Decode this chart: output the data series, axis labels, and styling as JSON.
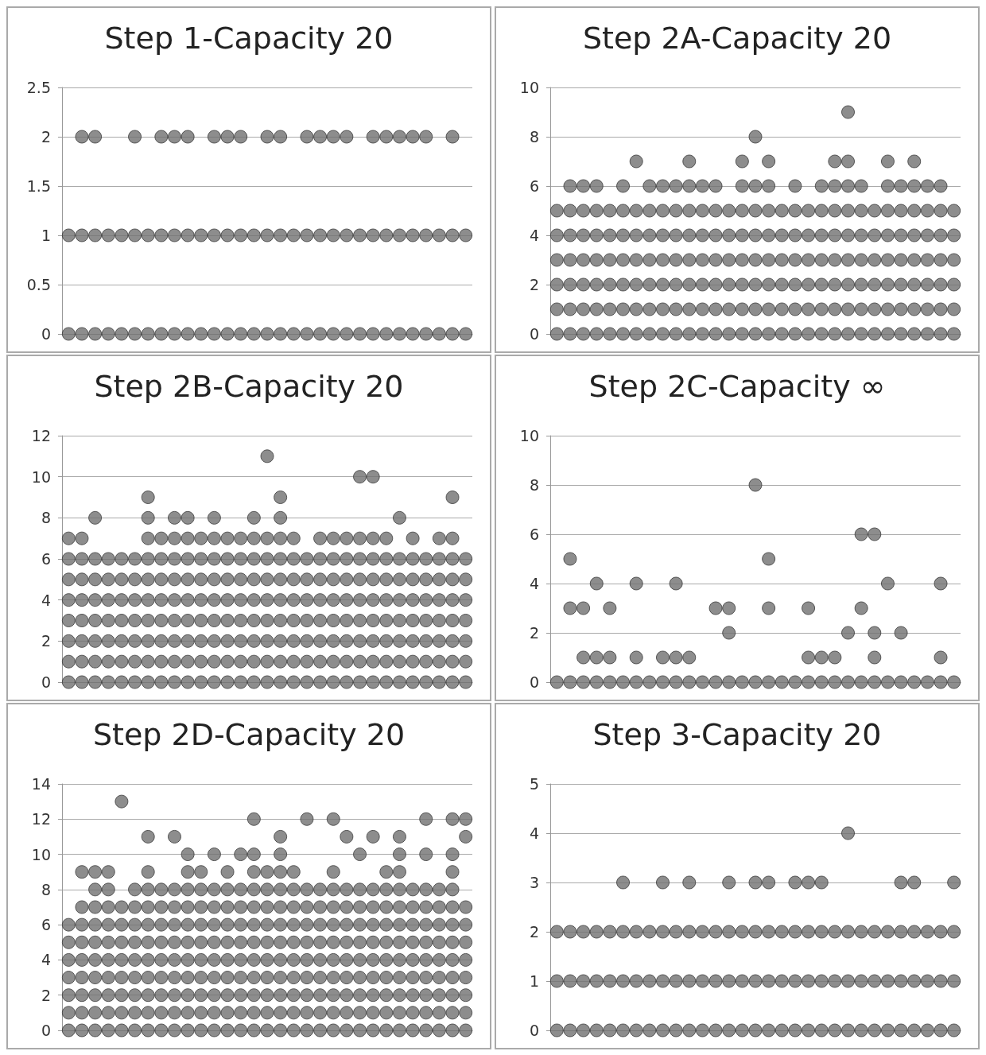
{
  "chart_data": [
    {
      "type": "scatter",
      "title": "Step 1-Capacity 20",
      "categories": [
        null,
        null,
        null,
        null,
        null,
        null,
        null,
        null,
        null,
        null,
        null,
        null,
        null,
        null,
        null,
        null,
        null,
        null,
        null,
        null,
        null,
        null,
        null,
        null,
        null,
        null,
        null,
        null,
        null,
        null,
        null
      ],
      "ylim": [
        0,
        2.5
      ],
      "yticks": [
        0,
        0.5,
        1,
        1.5,
        2,
        2.5
      ],
      "tick_labels": "y",
      "grid": "y",
      "marker": "circle",
      "series": [
        {
          "color": "#707070",
          "values": [
            0,
            0,
            0,
            0,
            0,
            0,
            0,
            0,
            0,
            0,
            0,
            0,
            0,
            0,
            0,
            0,
            0,
            0,
            0,
            0,
            0,
            0,
            0,
            0,
            0,
            0,
            0,
            0,
            0,
            0,
            0
          ]
        },
        {
          "color": "#707070",
          "values": [
            1,
            1,
            1,
            1,
            1,
            1,
            1,
            1,
            1,
            1,
            1,
            1,
            1,
            1,
            1,
            1,
            1,
            1,
            1,
            1,
            1,
            1,
            1,
            1,
            1,
            1,
            1,
            1,
            1,
            1,
            1
          ]
        },
        {
          "color": "#707070",
          "values": [
            null,
            2,
            2,
            null,
            null,
            2,
            null,
            2,
            2,
            2,
            null,
            2,
            2,
            2,
            null,
            2,
            2,
            null,
            2,
            2,
            2,
            2,
            null,
            2,
            2,
            2,
            2,
            2,
            null,
            2,
            null
          ]
        }
      ]
    },
    {
      "type": "scatter",
      "title": "Step 2A-Capacity 20",
      "categories": [
        null,
        null,
        null,
        null,
        null,
        null,
        null,
        null,
        null,
        null,
        null,
        null,
        null,
        null,
        null,
        null,
        null,
        null,
        null,
        null,
        null,
        null,
        null,
        null,
        null,
        null,
        null,
        null,
        null,
        null,
        null
      ],
      "ylim": [
        0,
        10
      ],
      "yticks": [
        0,
        2,
        4,
        6,
        8,
        10
      ],
      "tick_labels": "y",
      "grid": "y",
      "marker": "circle",
      "series": [
        {
          "color": "#707070",
          "values": [
            0,
            0,
            0,
            0,
            0,
            0,
            0,
            0,
            0,
            0,
            0,
            0,
            0,
            0,
            0,
            0,
            0,
            0,
            0,
            0,
            0,
            0,
            0,
            0,
            0,
            0,
            0,
            0,
            0,
            0,
            0
          ]
        },
        {
          "color": "#707070",
          "values": [
            1,
            1,
            1,
            1,
            1,
            1,
            1,
            1,
            1,
            1,
            1,
            1,
            1,
            1,
            1,
            1,
            1,
            1,
            1,
            1,
            1,
            1,
            1,
            1,
            1,
            1,
            1,
            1,
            1,
            1,
            1
          ]
        },
        {
          "color": "#707070",
          "values": [
            2,
            2,
            2,
            2,
            2,
            2,
            2,
            2,
            2,
            2,
            2,
            2,
            2,
            2,
            2,
            2,
            2,
            2,
            2,
            2,
            2,
            2,
            2,
            2,
            2,
            2,
            2,
            2,
            2,
            2,
            2
          ]
        },
        {
          "color": "#707070",
          "values": [
            3,
            3,
            3,
            3,
            3,
            3,
            3,
            3,
            3,
            3,
            3,
            3,
            3,
            3,
            3,
            3,
            3,
            3,
            3,
            3,
            3,
            3,
            3,
            3,
            3,
            3,
            3,
            3,
            3,
            3,
            3
          ]
        },
        {
          "color": "#707070",
          "values": [
            4,
            4,
            4,
            4,
            4,
            4,
            4,
            4,
            4,
            4,
            4,
            4,
            4,
            4,
            4,
            4,
            4,
            4,
            4,
            4,
            4,
            4,
            4,
            4,
            4,
            4,
            4,
            4,
            4,
            4,
            4
          ]
        },
        {
          "color": "#707070",
          "values": [
            5,
            5,
            5,
            5,
            5,
            5,
            5,
            5,
            5,
            5,
            5,
            5,
            5,
            5,
            5,
            5,
            5,
            5,
            5,
            5,
            5,
            5,
            5,
            5,
            5,
            5,
            5,
            5,
            5,
            5,
            5
          ]
        },
        {
          "color": "#707070",
          "values": [
            null,
            6,
            6,
            6,
            null,
            6,
            null,
            6,
            6,
            6,
            6,
            6,
            6,
            null,
            6,
            6,
            6,
            null,
            6,
            null,
            6,
            6,
            6,
            6,
            null,
            6,
            6,
            6,
            6,
            6,
            null
          ]
        },
        {
          "color": "#707070",
          "values": [
            null,
            null,
            null,
            null,
            null,
            null,
            7,
            null,
            null,
            null,
            7,
            null,
            null,
            null,
            7,
            null,
            7,
            null,
            null,
            null,
            null,
            7,
            7,
            null,
            null,
            7,
            null,
            7,
            null,
            null,
            null
          ]
        },
        {
          "color": "#707070",
          "values": [
            null,
            null,
            null,
            null,
            null,
            null,
            null,
            null,
            null,
            null,
            null,
            null,
            null,
            null,
            null,
            8,
            null,
            null,
            null,
            null,
            null,
            null,
            null,
            null,
            null,
            null,
            null,
            null,
            null,
            null,
            null
          ]
        },
        {
          "color": "#707070",
          "values": [
            null,
            null,
            null,
            null,
            null,
            null,
            null,
            null,
            null,
            null,
            null,
            null,
            null,
            null,
            null,
            null,
            null,
            null,
            null,
            null,
            null,
            null,
            9,
            null,
            null,
            null,
            null,
            null,
            null,
            null,
            null
          ]
        }
      ]
    },
    {
      "type": "scatter",
      "title": "Step 2B-Capacity 20",
      "categories": [
        null,
        null,
        null,
        null,
        null,
        null,
        null,
        null,
        null,
        null,
        null,
        null,
        null,
        null,
        null,
        null,
        null,
        null,
        null,
        null,
        null,
        null,
        null,
        null,
        null,
        null,
        null,
        null,
        null,
        null,
        null
      ],
      "ylim": [
        0,
        12
      ],
      "yticks": [
        0,
        2,
        4,
        6,
        8,
        10,
        12
      ],
      "tick_labels": "y",
      "grid": "y",
      "marker": "circle",
      "series": [
        {
          "color": "#707070",
          "values": [
            0,
            0,
            0,
            0,
            0,
            0,
            0,
            0,
            0,
            0,
            0,
            0,
            0,
            0,
            0,
            0,
            0,
            0,
            0,
            0,
            0,
            0,
            0,
            0,
            0,
            0,
            0,
            0,
            0,
            0,
            0
          ]
        },
        {
          "color": "#707070",
          "values": [
            1,
            1,
            1,
            1,
            1,
            1,
            1,
            1,
            1,
            1,
            1,
            1,
            1,
            1,
            1,
            1,
            1,
            1,
            1,
            1,
            1,
            1,
            1,
            1,
            1,
            1,
            1,
            1,
            1,
            1,
            1
          ]
        },
        {
          "color": "#707070",
          "values": [
            2,
            2,
            2,
            2,
            2,
            2,
            2,
            2,
            2,
            2,
            2,
            2,
            2,
            2,
            2,
            2,
            2,
            2,
            2,
            2,
            2,
            2,
            2,
            2,
            2,
            2,
            2,
            2,
            2,
            2,
            2
          ]
        },
        {
          "color": "#707070",
          "values": [
            3,
            3,
            3,
            3,
            3,
            3,
            3,
            3,
            3,
            3,
            3,
            3,
            3,
            3,
            3,
            3,
            3,
            3,
            3,
            3,
            3,
            3,
            3,
            3,
            3,
            3,
            3,
            3,
            3,
            3,
            3
          ]
        },
        {
          "color": "#707070",
          "values": [
            4,
            4,
            4,
            4,
            4,
            4,
            4,
            4,
            4,
            4,
            4,
            4,
            4,
            4,
            4,
            4,
            4,
            4,
            4,
            4,
            4,
            4,
            4,
            4,
            4,
            4,
            4,
            4,
            4,
            4,
            4
          ]
        },
        {
          "color": "#707070",
          "values": [
            5,
            5,
            5,
            5,
            5,
            5,
            5,
            5,
            5,
            5,
            5,
            5,
            5,
            5,
            5,
            5,
            5,
            5,
            5,
            5,
            5,
            5,
            5,
            5,
            5,
            5,
            5,
            5,
            5,
            5,
            5
          ]
        },
        {
          "color": "#707070",
          "values": [
            6,
            6,
            6,
            6,
            6,
            6,
            6,
            6,
            6,
            6,
            6,
            6,
            6,
            6,
            6,
            6,
            6,
            6,
            6,
            6,
            6,
            6,
            6,
            6,
            6,
            6,
            6,
            6,
            6,
            6,
            6
          ]
        },
        {
          "color": "#707070",
          "values": [
            7,
            7,
            null,
            null,
            null,
            null,
            7,
            7,
            7,
            7,
            7,
            7,
            7,
            7,
            7,
            7,
            7,
            7,
            null,
            7,
            7,
            7,
            7,
            7,
            7,
            null,
            7,
            null,
            7,
            7,
            null
          ]
        },
        {
          "color": "#707070",
          "values": [
            null,
            null,
            8,
            null,
            null,
            null,
            8,
            null,
            8,
            8,
            null,
            8,
            null,
            null,
            8,
            null,
            8,
            null,
            null,
            null,
            null,
            null,
            null,
            null,
            null,
            8,
            null,
            null,
            null,
            null,
            null
          ]
        },
        {
          "color": "#707070",
          "values": [
            null,
            null,
            null,
            null,
            null,
            null,
            9,
            null,
            null,
            null,
            null,
            null,
            null,
            null,
            null,
            null,
            9,
            null,
            null,
            null,
            null,
            null,
            null,
            null,
            null,
            null,
            null,
            null,
            null,
            9,
            null
          ]
        },
        {
          "color": "#707070",
          "values": [
            null,
            null,
            null,
            null,
            null,
            null,
            null,
            null,
            null,
            null,
            null,
            null,
            null,
            null,
            null,
            null,
            null,
            null,
            null,
            null,
            null,
            null,
            10,
            10,
            null,
            null,
            null,
            null,
            null,
            null,
            null
          ]
        },
        {
          "color": "#707070",
          "values": [
            null,
            null,
            null,
            null,
            null,
            null,
            null,
            null,
            null,
            null,
            null,
            null,
            null,
            null,
            null,
            11,
            null,
            null,
            null,
            null,
            null,
            null,
            null,
            null,
            null,
            null,
            null,
            null,
            null,
            null,
            null
          ]
        }
      ]
    },
    {
      "type": "scatter",
      "title": "Step 2C-Capacity ∞",
      "categories": [
        null,
        null,
        null,
        null,
        null,
        null,
        null,
        null,
        null,
        null,
        null,
        null,
        null,
        null,
        null,
        null,
        null,
        null,
        null,
        null,
        null,
        null,
        null,
        null,
        null,
        null,
        null,
        null,
        null,
        null,
        null
      ],
      "ylim": [
        0,
        10
      ],
      "yticks": [
        0,
        2,
        4,
        6,
        8,
        10
      ],
      "tick_labels": "y",
      "grid": "y",
      "marker": "circle",
      "series": [
        {
          "color": "#707070",
          "values": [
            0,
            0,
            0,
            0,
            0,
            0,
            0,
            0,
            0,
            0,
            0,
            0,
            0,
            0,
            0,
            0,
            0,
            0,
            0,
            0,
            0,
            0,
            0,
            0,
            0,
            0,
            0,
            0,
            0,
            0,
            0
          ]
        },
        {
          "color": "#707070",
          "values": [
            null,
            null,
            1,
            1,
            1,
            null,
            1,
            null,
            1,
            1,
            1,
            null,
            null,
            null,
            null,
            null,
            null,
            null,
            null,
            1,
            1,
            1,
            null,
            null,
            1,
            null,
            null,
            null,
            null,
            1,
            null
          ]
        },
        {
          "color": "#707070",
          "values": [
            null,
            null,
            null,
            null,
            null,
            null,
            null,
            null,
            null,
            null,
            null,
            null,
            null,
            2,
            null,
            null,
            null,
            null,
            null,
            null,
            null,
            null,
            2,
            null,
            2,
            null,
            2,
            null,
            null,
            null,
            null
          ]
        },
        {
          "color": "#707070",
          "values": [
            null,
            3,
            3,
            null,
            3,
            null,
            null,
            null,
            null,
            null,
            null,
            null,
            3,
            3,
            null,
            null,
            3,
            null,
            null,
            3,
            null,
            null,
            null,
            3,
            null,
            null,
            null,
            null,
            null,
            null,
            null
          ]
        },
        {
          "color": "#707070",
          "values": [
            null,
            null,
            null,
            4,
            null,
            null,
            4,
            null,
            null,
            4,
            null,
            null,
            null,
            null,
            null,
            null,
            null,
            null,
            null,
            null,
            null,
            null,
            null,
            null,
            null,
            4,
            null,
            null,
            null,
            4,
            null
          ]
        },
        {
          "color": "#707070",
          "values": [
            null,
            5,
            null,
            null,
            null,
            null,
            null,
            null,
            null,
            null,
            null,
            null,
            null,
            null,
            null,
            null,
            5,
            null,
            null,
            null,
            null,
            null,
            null,
            null,
            null,
            null,
            null,
            null,
            null,
            null,
            null
          ]
        },
        {
          "color": "#707070",
          "values": [
            null,
            null,
            null,
            null,
            null,
            null,
            null,
            null,
            null,
            null,
            null,
            null,
            null,
            null,
            null,
            null,
            null,
            null,
            null,
            null,
            null,
            null,
            null,
            6,
            6,
            null,
            null,
            null,
            null,
            null,
            null
          ]
        },
        {
          "color": "#707070",
          "values": [
            null,
            null,
            null,
            null,
            null,
            null,
            null,
            null,
            null,
            null,
            null,
            null,
            null,
            null,
            null,
            8,
            null,
            null,
            null,
            null,
            null,
            null,
            null,
            null,
            null,
            null,
            null,
            null,
            null,
            null,
            null
          ]
        }
      ]
    },
    {
      "type": "scatter",
      "title": "Step 2D-Capacity 20",
      "categories": [
        null,
        null,
        null,
        null,
        null,
        null,
        null,
        null,
        null,
        null,
        null,
        null,
        null,
        null,
        null,
        null,
        null,
        null,
        null,
        null,
        null,
        null,
        null,
        null,
        null,
        null,
        null,
        null,
        null,
        null,
        null
      ],
      "ylim": [
        0,
        14
      ],
      "yticks": [
        0,
        2,
        4,
        6,
        8,
        10,
        12,
        14
      ],
      "tick_labels": "y",
      "grid": "y",
      "marker": "circle",
      "series": [
        {
          "color": "#707070",
          "values": [
            0,
            0,
            0,
            0,
            0,
            0,
            0,
            0,
            0,
            0,
            0,
            0,
            0,
            0,
            0,
            0,
            0,
            0,
            0,
            0,
            0,
            0,
            0,
            0,
            0,
            0,
            0,
            0,
            0,
            0,
            0
          ]
        },
        {
          "color": "#707070",
          "values": [
            1,
            1,
            1,
            1,
            1,
            1,
            1,
            1,
            1,
            1,
            1,
            1,
            1,
            1,
            1,
            1,
            1,
            1,
            1,
            1,
            1,
            1,
            1,
            1,
            1,
            1,
            1,
            1,
            1,
            1,
            1
          ]
        },
        {
          "color": "#707070",
          "values": [
            2,
            2,
            2,
            2,
            2,
            2,
            2,
            2,
            2,
            2,
            2,
            2,
            2,
            2,
            2,
            2,
            2,
            2,
            2,
            2,
            2,
            2,
            2,
            2,
            2,
            2,
            2,
            2,
            2,
            2,
            2
          ]
        },
        {
          "color": "#707070",
          "values": [
            3,
            3,
            3,
            3,
            3,
            3,
            3,
            3,
            3,
            3,
            3,
            3,
            3,
            3,
            3,
            3,
            3,
            3,
            3,
            3,
            3,
            3,
            3,
            3,
            3,
            3,
            3,
            3,
            3,
            3,
            3
          ]
        },
        {
          "color": "#707070",
          "values": [
            4,
            4,
            4,
            4,
            4,
            4,
            4,
            4,
            4,
            4,
            4,
            4,
            4,
            4,
            4,
            4,
            4,
            4,
            4,
            4,
            4,
            4,
            4,
            4,
            4,
            4,
            4,
            4,
            4,
            4,
            4
          ]
        },
        {
          "color": "#707070",
          "values": [
            5,
            5,
            5,
            5,
            5,
            5,
            5,
            5,
            5,
            5,
            5,
            5,
            5,
            5,
            5,
            5,
            5,
            5,
            5,
            5,
            5,
            5,
            5,
            5,
            5,
            5,
            5,
            5,
            5,
            5,
            5
          ]
        },
        {
          "color": "#707070",
          "values": [
            6,
            6,
            6,
            6,
            6,
            6,
            6,
            6,
            6,
            6,
            6,
            6,
            6,
            6,
            6,
            6,
            6,
            6,
            6,
            6,
            6,
            6,
            6,
            6,
            6,
            6,
            6,
            6,
            6,
            6,
            6
          ]
        },
        {
          "color": "#707070",
          "values": [
            null,
            7,
            7,
            7,
            7,
            7,
            7,
            7,
            7,
            7,
            7,
            7,
            7,
            7,
            7,
            7,
            7,
            7,
            7,
            7,
            7,
            7,
            7,
            7,
            7,
            7,
            7,
            7,
            7,
            7,
            7
          ]
        },
        {
          "color": "#707070",
          "values": [
            null,
            null,
            8,
            8,
            null,
            8,
            8,
            8,
            8,
            8,
            8,
            8,
            8,
            8,
            8,
            8,
            8,
            8,
            8,
            8,
            8,
            8,
            8,
            8,
            8,
            8,
            8,
            8,
            8,
            8,
            null
          ]
        },
        {
          "color": "#707070",
          "values": [
            null,
            9,
            9,
            9,
            null,
            null,
            9,
            null,
            null,
            9,
            9,
            null,
            9,
            null,
            9,
            9,
            9,
            9,
            null,
            null,
            9,
            null,
            null,
            null,
            9,
            9,
            null,
            null,
            null,
            9,
            null
          ]
        },
        {
          "color": "#707070",
          "values": [
            null,
            null,
            null,
            null,
            null,
            null,
            null,
            null,
            null,
            10,
            null,
            10,
            null,
            10,
            10,
            null,
            10,
            null,
            null,
            null,
            null,
            null,
            10,
            null,
            null,
            10,
            null,
            10,
            null,
            10,
            null
          ]
        },
        {
          "color": "#707070",
          "values": [
            null,
            null,
            null,
            null,
            null,
            null,
            11,
            null,
            11,
            null,
            null,
            null,
            null,
            null,
            null,
            null,
            11,
            null,
            null,
            null,
            null,
            11,
            null,
            11,
            null,
            11,
            null,
            null,
            null,
            null,
            11
          ]
        },
        {
          "color": "#707070",
          "values": [
            null,
            null,
            null,
            null,
            null,
            null,
            null,
            null,
            null,
            null,
            null,
            null,
            null,
            null,
            12,
            null,
            null,
            null,
            12,
            null,
            12,
            null,
            null,
            null,
            null,
            null,
            null,
            12,
            null,
            12,
            12
          ]
        },
        {
          "color": "#707070",
          "values": [
            null,
            null,
            null,
            null,
            13,
            null,
            null,
            null,
            null,
            null,
            null,
            null,
            null,
            null,
            null,
            null,
            null,
            null,
            null,
            null,
            null,
            null,
            null,
            null,
            null,
            null,
            null,
            null,
            null,
            null,
            null
          ]
        }
      ]
    },
    {
      "type": "scatter",
      "title": "Step 3-Capacity 20",
      "categories": [
        null,
        null,
        null,
        null,
        null,
        null,
        null,
        null,
        null,
        null,
        null,
        null,
        null,
        null,
        null,
        null,
        null,
        null,
        null,
        null,
        null,
        null,
        null,
        null,
        null,
        null,
        null,
        null,
        null,
        null,
        null
      ],
      "ylim": [
        0,
        5
      ],
      "yticks": [
        0,
        1,
        2,
        3,
        4,
        5
      ],
      "tick_labels": "y",
      "grid": "y",
      "marker": "circle",
      "series": [
        {
          "color": "#707070",
          "values": [
            0,
            0,
            0,
            0,
            0,
            0,
            0,
            0,
            0,
            0,
            0,
            0,
            0,
            0,
            0,
            0,
            0,
            0,
            0,
            0,
            0,
            0,
            0,
            0,
            0,
            0,
            0,
            0,
            0,
            0,
            0
          ]
        },
        {
          "color": "#707070",
          "values": [
            1,
            1,
            1,
            1,
            1,
            1,
            1,
            1,
            1,
            1,
            1,
            1,
            1,
            1,
            1,
            1,
            1,
            1,
            1,
            1,
            1,
            1,
            1,
            1,
            1,
            1,
            1,
            1,
            1,
            1,
            1
          ]
        },
        {
          "color": "#707070",
          "values": [
            2,
            2,
            2,
            2,
            2,
            2,
            2,
            2,
            2,
            2,
            2,
            2,
            2,
            2,
            2,
            2,
            2,
            2,
            2,
            2,
            2,
            2,
            2,
            2,
            2,
            2,
            2,
            2,
            2,
            2,
            2
          ]
        },
        {
          "color": "#707070",
          "values": [
            null,
            null,
            null,
            null,
            null,
            3,
            null,
            null,
            3,
            null,
            3,
            null,
            null,
            3,
            null,
            3,
            3,
            null,
            3,
            3,
            3,
            null,
            null,
            null,
            null,
            null,
            3,
            3,
            null,
            null,
            3
          ]
        },
        {
          "color": "#707070",
          "values": [
            null,
            null,
            null,
            null,
            null,
            null,
            null,
            null,
            null,
            null,
            null,
            null,
            null,
            null,
            null,
            null,
            null,
            null,
            null,
            null,
            null,
            null,
            4,
            null,
            null,
            null,
            null,
            null,
            null,
            null,
            null
          ]
        }
      ]
    }
  ]
}
